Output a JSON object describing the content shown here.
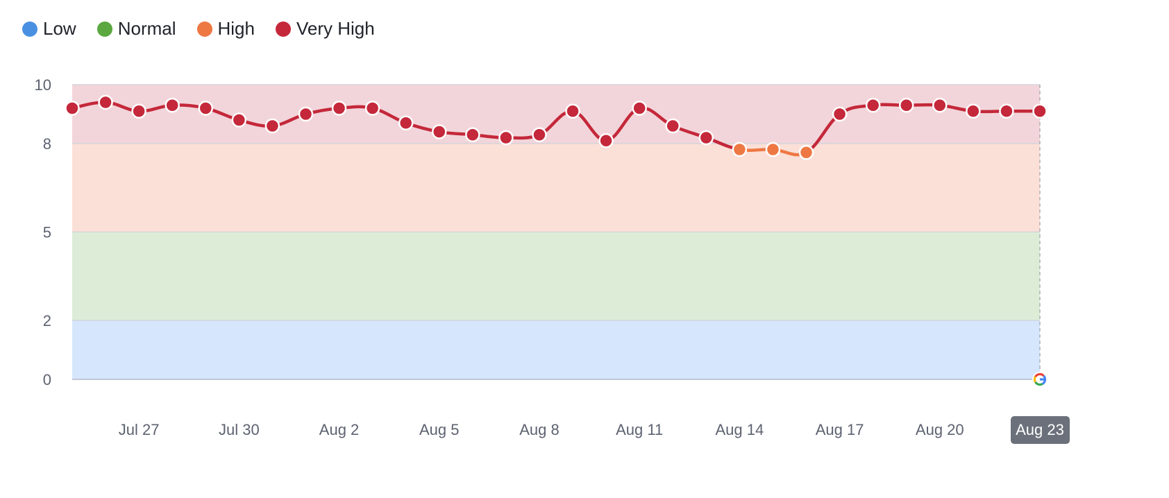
{
  "legend": [
    {
      "label": "Low",
      "color": "#4a90e2"
    },
    {
      "label": "Normal",
      "color": "#5aa83f"
    },
    {
      "label": "High",
      "color": "#ee7843"
    },
    {
      "label": "Very High",
      "color": "#c4283a"
    }
  ],
  "chart_data": {
    "type": "line",
    "title": "",
    "xlabel": "",
    "ylabel": "",
    "ylim": [
      0,
      10
    ],
    "yticks": [
      0,
      2,
      5,
      8,
      10
    ],
    "bands": [
      {
        "name": "Low",
        "from": 0,
        "to": 2,
        "color": "#d6e6fc"
      },
      {
        "name": "Normal",
        "from": 2,
        "to": 5,
        "color": "#ddecd7"
      },
      {
        "name": "High",
        "from": 5,
        "to": 8,
        "color": "#fbe0d7"
      },
      {
        "name": "Very High",
        "from": 8,
        "to": 10,
        "color": "#f2d5da"
      }
    ],
    "x": [
      "Jul 25",
      "Jul 26",
      "Jul 27",
      "Jul 28",
      "Jul 29",
      "Jul 30",
      "Jul 31",
      "Aug 1",
      "Aug 2",
      "Aug 3",
      "Aug 4",
      "Aug 5",
      "Aug 6",
      "Aug 7",
      "Aug 8",
      "Aug 9",
      "Aug 10",
      "Aug 11",
      "Aug 12",
      "Aug 13",
      "Aug 14",
      "Aug 15",
      "Aug 16",
      "Aug 17",
      "Aug 18",
      "Aug 19",
      "Aug 20",
      "Aug 21",
      "Aug 22",
      "Aug 23"
    ],
    "series": [
      {
        "values": [
          9.2,
          9.4,
          9.1,
          9.3,
          9.2,
          8.8,
          8.6,
          9.0,
          9.2,
          9.2,
          8.7,
          8.4,
          8.3,
          8.2,
          8.3,
          9.1,
          8.1,
          9.2,
          8.6,
          8.2,
          7.8,
          7.8,
          7.7,
          9.0,
          9.3,
          9.3,
          9.3,
          9.1,
          9.1,
          9.1
        ]
      }
    ],
    "xtick_labels": [
      "Jul 27",
      "Jul 30",
      "Aug 2",
      "Aug 5",
      "Aug 8",
      "Aug 11",
      "Aug 14",
      "Aug 17",
      "Aug 20",
      "Aug 23"
    ],
    "highlighted_x": "Aug 23",
    "annotation_icon": "google-g-icon",
    "grid": true,
    "legend_position": "top-left"
  }
}
